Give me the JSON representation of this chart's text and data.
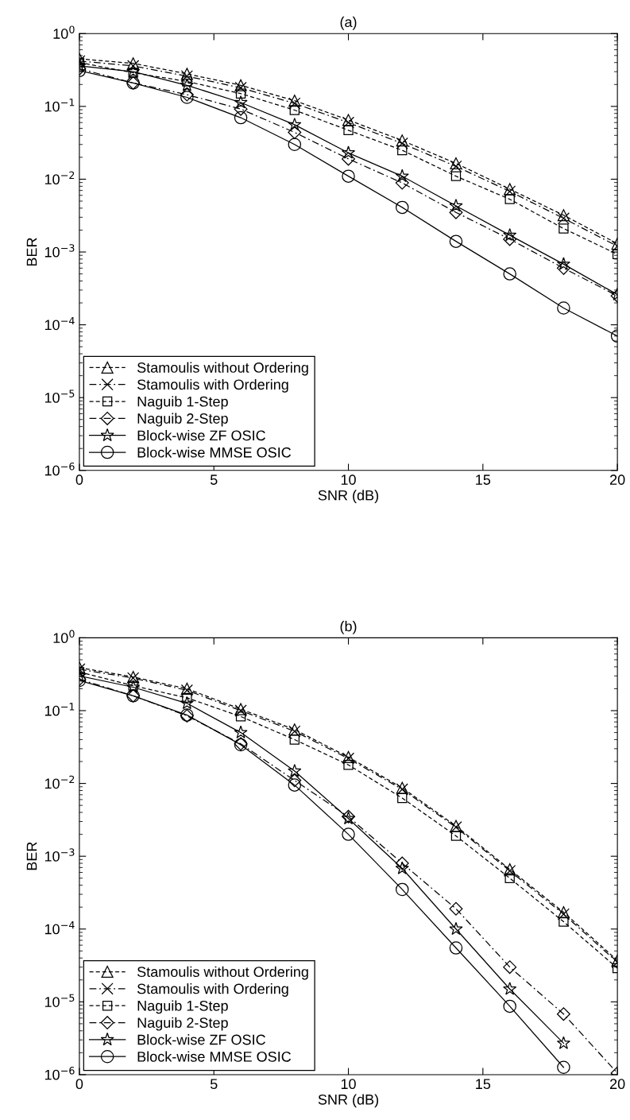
{
  "chart_data": [
    {
      "type": "line",
      "title": "(a)",
      "xlabel": "SNR (dB)",
      "ylabel": "BER",
      "log": "y",
      "x": [
        0,
        2,
        4,
        6,
        8,
        10,
        12,
        14,
        16,
        18,
        20
      ],
      "xlim": [
        0,
        20
      ],
      "xticks": [
        0,
        5,
        10,
        15,
        20
      ],
      "ylim": [
        1e-06,
        1
      ],
      "yticks": [
        {
          "value": 1e-06,
          "label": "10$^{−6}$"
        },
        {
          "value": 1e-05,
          "label": "10$^{−5}$"
        },
        {
          "value": 0.0001,
          "label": "10$^{−4}$"
        },
        {
          "value": 0.001,
          "label": "10$^{−3}$"
        },
        {
          "value": 0.01,
          "label": "10$^{−2}$"
        },
        {
          "value": 0.1,
          "label": "10$^{−1}$"
        },
        {
          "value": 1,
          "label": "10$^{0}$"
        }
      ],
      "grid": false,
      "legend": "bottom left",
      "series": [
        {
          "name": "Stamoulis without Ordering",
          "color": "#000000",
          "marker": "triangle",
          "line_style": "dashed",
          "values": [
            0.45,
            0.39,
            0.28,
            0.195,
            0.12,
            0.065,
            0.034,
            0.0165,
            0.0073,
            0.0032,
            0.0013
          ]
        },
        {
          "name": "Stamoulis with Ordering",
          "color": "#000000",
          "marker": "cross",
          "line_style": "dashdot",
          "values": [
            0.42,
            0.36,
            0.26,
            0.18,
            0.11,
            0.06,
            0.031,
            0.015,
            0.0068,
            0.0029,
            0.0012
          ]
        },
        {
          "name": "Naguib 1-Step",
          "color": "#000000",
          "marker": "square",
          "line_style": "dashed",
          "values": [
            0.4,
            0.29,
            0.22,
            0.15,
            0.089,
            0.047,
            0.025,
            0.011,
            0.0053,
            0.0021,
            0.00093
          ]
        },
        {
          "name": "Naguib 2-Step",
          "color": "#000000",
          "marker": "diamond",
          "line_style": "dashdot",
          "values": [
            0.33,
            0.21,
            0.145,
            0.092,
            0.044,
            0.019,
            0.0089,
            0.0035,
            0.0015,
            0.0006,
            0.00025
          ]
        },
        {
          "name": "Block-wise ZF OSIC",
          "color": "#000000",
          "marker": "star",
          "line_style": "solid",
          "values": [
            0.36,
            0.3,
            0.195,
            0.113,
            0.056,
            0.023,
            0.011,
            0.0043,
            0.0017,
            0.00068,
            0.00026
          ]
        },
        {
          "name": "Block-wise MMSE OSIC",
          "color": "#000000",
          "marker": "circle",
          "line_style": "solid",
          "values": [
            0.31,
            0.21,
            0.133,
            0.07,
            0.03,
            0.011,
            0.0041,
            0.0014,
            0.0005,
            0.00017,
            7e-05
          ]
        }
      ]
    },
    {
      "type": "line",
      "title": "(b)",
      "xlabel": "SNR (dB)",
      "ylabel": "BER",
      "log": "y",
      "x": [
        0,
        2,
        4,
        6,
        8,
        10,
        12,
        14,
        16,
        18,
        20
      ],
      "xlim": [
        0,
        20
      ],
      "xticks": [
        0,
        5,
        10,
        15,
        20
      ],
      "ylim": [
        1e-06,
        1
      ],
      "yticks": [
        {
          "value": 1e-06,
          "label": "10$^{−6}$"
        },
        {
          "value": 1e-05,
          "label": "10$^{−5}$"
        },
        {
          "value": 0.0001,
          "label": "10$^{−4}$"
        },
        {
          "value": 0.001,
          "label": "10$^{−3}$"
        },
        {
          "value": 0.01,
          "label": "10$^{−2}$"
        },
        {
          "value": 0.1,
          "label": "10$^{−1}$"
        },
        {
          "value": 1,
          "label": "10$^{0}$"
        }
      ],
      "grid": false,
      "legend": "bottom left",
      "series": [
        {
          "name": "Stamoulis without Ordering",
          "color": "#000000",
          "marker": "triangle",
          "line_style": "dashed",
          "values": [
            0.39,
            0.29,
            0.2,
            0.105,
            0.055,
            0.023,
            0.0087,
            0.0026,
            0.00066,
            0.00017,
            3.7e-05
          ]
        },
        {
          "name": "Stamoulis with Ordering",
          "color": "#000000",
          "marker": "cross",
          "line_style": "dashdot",
          "values": [
            0.37,
            0.28,
            0.19,
            0.1,
            0.052,
            0.022,
            0.0083,
            0.0025,
            0.00063,
            0.00016,
            3.5e-05
          ]
        },
        {
          "name": "Naguib 1-Step",
          "color": "#000000",
          "marker": "square",
          "line_style": "dashed",
          "values": [
            0.34,
            0.22,
            0.15,
            0.083,
            0.04,
            0.018,
            0.0063,
            0.0019,
            0.0005,
            0.000126,
            2.9e-05
          ]
        },
        {
          "name": "Naguib 2-Step",
          "color": "#000000",
          "marker": "diamond",
          "line_style": "dashdot",
          "values": [
            0.27,
            0.16,
            0.085,
            0.035,
            0.011,
            0.0035,
            0.0008,
            0.00019,
            3e-05,
            6.8e-06,
            1.05e-06
          ]
        },
        {
          "name": "Block-wise ZF OSIC",
          "color": "#000000",
          "marker": "star",
          "line_style": "solid",
          "values": [
            0.3,
            0.21,
            0.126,
            0.05,
            0.0148,
            0.0033,
            0.00068,
            0.0001,
            1.5e-05,
            2.7e-06,
            null
          ]
        },
        {
          "name": "Block-wise MMSE OSIC",
          "color": "#000000",
          "marker": "circle",
          "line_style": "solid",
          "values": [
            0.26,
            0.16,
            0.087,
            0.034,
            0.0095,
            0.002,
            0.00035,
            5.5e-05,
            8.7e-06,
            1.26e-06,
            null
          ]
        }
      ]
    }
  ]
}
